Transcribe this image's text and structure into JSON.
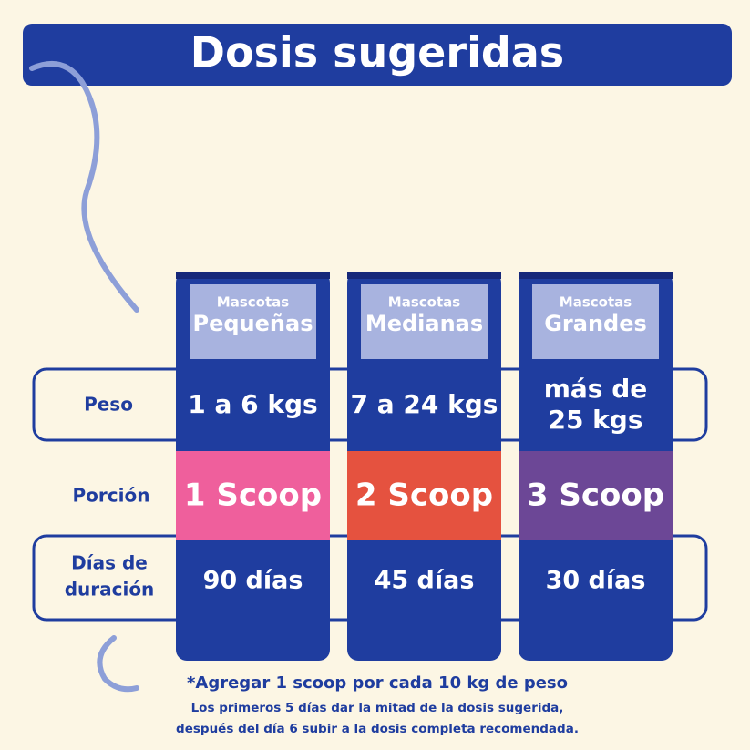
{
  "title": "Dosis sugeridas",
  "row_labels": {
    "peso": "Peso",
    "porcion": "Porción",
    "dias": [
      "Días de",
      "duración"
    ]
  },
  "columns": [
    {
      "label_small": "Mascotas",
      "label_big": "Pequeñas",
      "peso": [
        "1 a 6 kgs"
      ],
      "porcion": "1 Scoop",
      "dias": "90 días"
    },
    {
      "label_small": "Mascotas",
      "label_big": "Medianas",
      "peso": [
        "7 a 24 kgs"
      ],
      "porcion": "2 Scoop",
      "dias": "45 días"
    },
    {
      "label_small": "Mascotas",
      "label_big": "Grandes",
      "peso": [
        "más de",
        "25 kgs"
      ],
      "porcion": "3 Scoop",
      "dias": "30 días"
    }
  ],
  "footer": {
    "note": "*Agregar 1 scoop por cada 10 kg de peso",
    "lines": [
      "Los primeros 5 días dar la mitad de la dosis sugerida,",
      "después del día 6 subir a la dosis completa recomendada."
    ]
  }
}
